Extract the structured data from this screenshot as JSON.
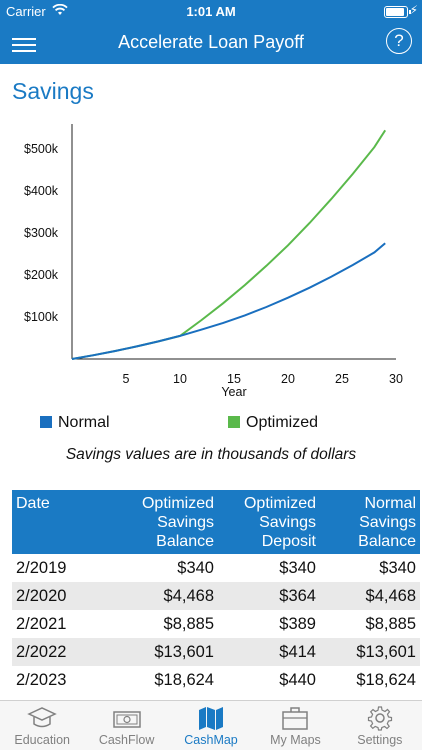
{
  "status": {
    "carrier": "Carrier",
    "time": "1:01 AM"
  },
  "nav": {
    "title": "Accelerate Loan Payoff",
    "help": "?"
  },
  "section_title": "Savings",
  "chart_data": {
    "type": "line",
    "xlabel": "Year",
    "xlim": [
      0,
      30
    ],
    "ylim": [
      0,
      560
    ],
    "x_ticks": [
      5,
      10,
      15,
      20,
      25,
      30
    ],
    "y_ticks": [
      100,
      200,
      300,
      400,
      500
    ],
    "y_tick_labels": [
      "$100k",
      "$200k",
      "$300k",
      "$400k",
      "$500k"
    ],
    "legend_position": "bottom",
    "series": [
      {
        "name": "Normal",
        "color": "#1a6fbf",
        "x": [
          0,
          2,
          4,
          6,
          8,
          10,
          12,
          14,
          16,
          18,
          20,
          22,
          24,
          26,
          28,
          29
        ],
        "y": [
          0,
          9,
          19,
          30,
          42,
          55,
          70,
          86,
          104,
          124,
          146,
          170,
          196,
          224,
          254,
          276
        ]
      },
      {
        "name": "Optimized",
        "color": "#5ab94b",
        "x": [
          0,
          2,
          4,
          6,
          8,
          10,
          12,
          14,
          16,
          18,
          20,
          22,
          24,
          26,
          28,
          29
        ],
        "y": [
          0,
          9,
          19,
          30,
          42,
          55,
          93,
          133,
          176,
          222,
          271,
          324,
          381,
          441,
          505,
          545
        ]
      }
    ]
  },
  "note": "Savings values are in thousands of dollars",
  "table": {
    "headers": [
      [
        "Date"
      ],
      [
        "Optimized",
        "Savings",
        "Balance"
      ],
      [
        "Optimized",
        "Savings",
        "Deposit"
      ],
      [
        "Normal",
        "Savings",
        "Balance"
      ]
    ],
    "rows": [
      [
        "2/2019",
        "$340",
        "$340",
        "$340"
      ],
      [
        "2/2020",
        "$4,468",
        "$364",
        "$4,468"
      ],
      [
        "2/2021",
        "$8,885",
        "$389",
        "$8,885"
      ],
      [
        "2/2022",
        "$13,601",
        "$414",
        "$13,601"
      ],
      [
        "2/2023",
        "$18,624",
        "$440",
        "$18,624"
      ]
    ]
  },
  "tabs": [
    {
      "label": "Education",
      "icon": "graduation-cap-icon",
      "active": false
    },
    {
      "label": "CashFlow",
      "icon": "cash-icon",
      "active": false
    },
    {
      "label": "CashMap",
      "icon": "map-icon",
      "active": true
    },
    {
      "label": "My Maps",
      "icon": "briefcase-icon",
      "active": false
    },
    {
      "label": "Settings",
      "icon": "gear-icon",
      "active": false
    }
  ]
}
